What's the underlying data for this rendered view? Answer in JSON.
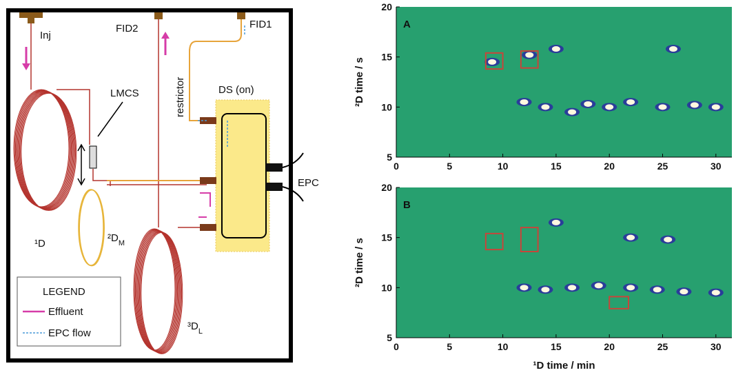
{
  "diagram": {
    "inj": "Inj",
    "fid2": "FID2",
    "fid1": "FID1",
    "lmcs": "LMCS",
    "restrictor": "restrictor",
    "ds": "DS (on)",
    "epc": "EPC",
    "d1": "¹D",
    "d2": {
      "label": "²D",
      "sub": "M"
    },
    "d3": {
      "label": "³D",
      "sub": "L"
    },
    "legend": {
      "title": "LEGEND",
      "effluent": "Effluent",
      "epc_flow": "EPC flow"
    }
  },
  "plots": [
    {
      "label": "A",
      "xlim": [
        0,
        31.5
      ],
      "ylim": [
        5,
        20
      ],
      "xticks": [
        0,
        5,
        10,
        15,
        20,
        25,
        30
      ],
      "yticks": [
        5,
        10,
        15,
        20
      ],
      "ylabel": "²D time / s",
      "spots": [
        [
          9,
          14.5
        ],
        [
          12.5,
          15.2
        ],
        [
          15,
          15.8
        ],
        [
          26,
          15.8
        ],
        [
          16.5,
          9.5
        ],
        [
          20,
          10
        ],
        [
          22,
          10.5
        ],
        [
          25,
          10
        ],
        [
          28,
          10.2
        ],
        [
          30,
          10
        ],
        [
          12,
          10.5
        ],
        [
          18,
          10.3
        ],
        [
          14,
          10
        ]
      ],
      "boxes": [
        [
          8.4,
          10,
          13.8,
          15.4
        ],
        [
          11.7,
          13.3,
          13.9,
          15.6
        ]
      ]
    },
    {
      "label": "B",
      "xlim": [
        0,
        31.5
      ],
      "ylim": [
        5,
        20
      ],
      "xticks": [
        0,
        5,
        10,
        15,
        20,
        25,
        30
      ],
      "yticks": [
        5,
        10,
        15,
        20
      ],
      "ylabel": "²D time / s",
      "xlabel": "¹D time / min",
      "spots": [
        [
          15,
          16.5
        ],
        [
          22,
          15
        ],
        [
          25.5,
          14.8
        ],
        [
          16.5,
          10
        ],
        [
          19,
          10.2
        ],
        [
          22,
          10
        ],
        [
          24.5,
          9.8
        ],
        [
          27,
          9.6
        ],
        [
          30,
          9.5
        ],
        [
          12,
          10
        ],
        [
          14,
          9.8
        ]
      ],
      "boxes": [
        [
          8.4,
          10,
          13.8,
          15.4
        ],
        [
          11.7,
          13.3,
          13.6,
          16
        ],
        [
          20,
          21.8,
          7.9,
          9.1
        ]
      ]
    }
  ]
}
